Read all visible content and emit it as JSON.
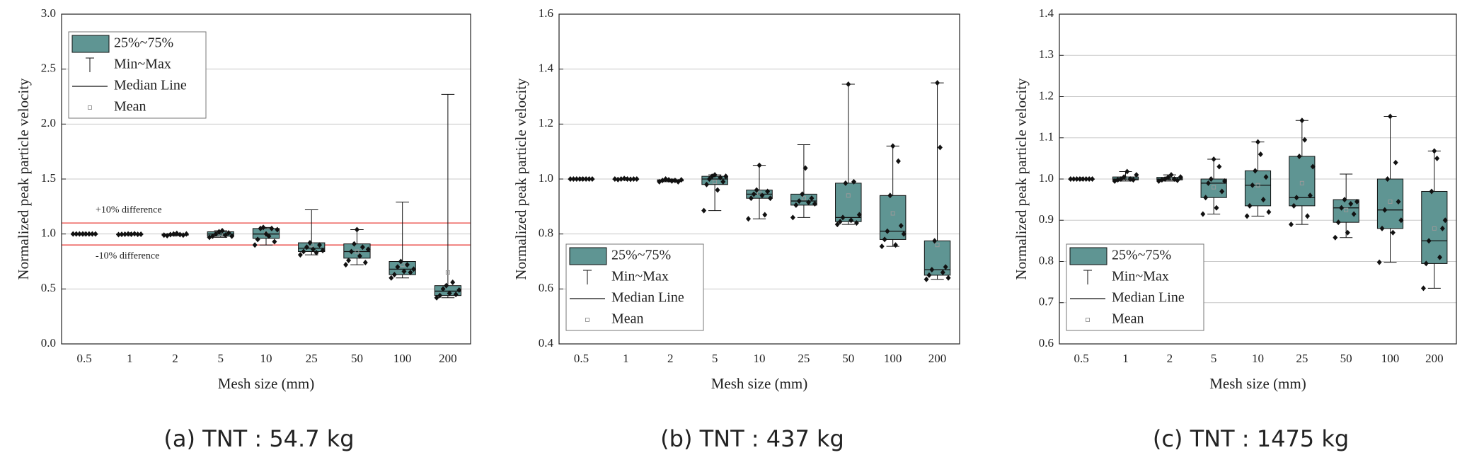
{
  "chart_data": [
    {
      "type": "box",
      "caption": "(a) TNT : 54.7 kg",
      "xlabel": "Mesh size (mm)",
      "ylabel": "Normalized peak particle velocity",
      "categories": [
        "0.5",
        "1",
        "2",
        "5",
        "10",
        "25",
        "50",
        "100",
        "200"
      ],
      "ylim": [
        0,
        3
      ],
      "yticks": [
        {
          "value": 0,
          "label": "0.0"
        },
        0.5,
        {
          "value": 1,
          "label": "1.0"
        },
        1.5,
        {
          "value": 2,
          "label": "2.0"
        },
        2.5,
        {
          "value": 3,
          "label": "3.0"
        }
      ],
      "color": "#5f9593",
      "grid": true,
      "legend": {
        "corner": "upper left",
        "labels": [
          "25%~75%",
          "Min~Max",
          "Median Line",
          "Mean"
        ]
      },
      "reference_lines": [
        {
          "value": 1.1,
          "label": "+10% difference",
          "color": "#e8413c"
        },
        {
          "value": 0.9,
          "label": "-10% difference",
          "color": "#e8413c"
        }
      ],
      "boxes": [
        {
          "min": 1,
          "q1": 1,
          "median": 1,
          "q3": 1,
          "max": 1,
          "mean": 1,
          "points": [
            1,
            1,
            1,
            1,
            1,
            1,
            1,
            1
          ]
        },
        {
          "min": 0.995,
          "q1": 0.997,
          "median": 0.998,
          "q3": 1,
          "max": 1.002,
          "mean": 0.998,
          "points": [
            0.995,
            0.997,
            0.998,
            1,
            0.998,
            1.002,
            0.997,
            0.998
          ]
        },
        {
          "min": 0.985,
          "q1": 0.99,
          "median": 0.995,
          "q3": 1,
          "max": 1.005,
          "mean": 0.995,
          "points": [
            0.99,
            0.985,
            0.995,
            1,
            1.005,
            0.995,
            0.99,
            1
          ]
        },
        {
          "min": 0.97,
          "q1": 0.98,
          "median": 1,
          "q3": 1.02,
          "max": 1.03,
          "mean": 1,
          "points": [
            0.97,
            0.98,
            1,
            1.02,
            1.03,
            0.99,
            1.01,
            0.98
          ]
        },
        {
          "min": 0.9,
          "q1": 0.96,
          "median": 1,
          "q3": 1.05,
          "max": 1.06,
          "mean": 1,
          "points": [
            0.9,
            0.95,
            1.05,
            1.06,
            1,
            0.98,
            1.05,
            0.93,
            1.04
          ]
        },
        {
          "min": 0.81,
          "q1": 0.84,
          "median": 0.87,
          "q3": 0.92,
          "max": 1.22,
          "mean": 0.9,
          "points": [
            0.81,
            0.84,
            0.88,
            0.92,
            0.86,
            0.83,
            0.9,
            0.85
          ]
        },
        {
          "min": 0.72,
          "q1": 0.78,
          "median": 0.84,
          "q3": 0.91,
          "max": 1.04,
          "mean": 0.84,
          "points": [
            0.72,
            0.76,
            0.84,
            0.91,
            1.04,
            0.8,
            0.88,
            0.74,
            0.86
          ]
        },
        {
          "min": 0.6,
          "q1": 0.63,
          "median": 0.68,
          "q3": 0.75,
          "max": 1.29,
          "mean": 0.72,
          "points": [
            0.6,
            0.63,
            0.7,
            0.75,
            0.66,
            0.72,
            0.65,
            0.68
          ]
        },
        {
          "min": 0.42,
          "q1": 0.44,
          "median": 0.48,
          "q3": 0.53,
          "max": 2.27,
          "mean": 0.65,
          "points": [
            0.42,
            0.44,
            0.5,
            0.53,
            0.46,
            0.56,
            0.45,
            0.49
          ]
        }
      ]
    },
    {
      "type": "box",
      "caption": "(b) TNT : 437 kg",
      "xlabel": "Mesh size (mm)",
      "ylabel": "Normalized peak particle velocity",
      "categories": [
        "0.5",
        "1",
        "2",
        "5",
        "10",
        "25",
        "50",
        "100",
        "200"
      ],
      "ylim": [
        0.4,
        1.6
      ],
      "yticks": [
        0.4,
        0.6,
        0.8,
        {
          "value": 1,
          "label": "1.0"
        },
        1.2,
        1.4,
        1.6
      ],
      "color": "#5f9593",
      "grid": true,
      "legend": {
        "corner": "lower left",
        "labels": [
          "25%~75%",
          "Min~Max",
          "Median Line",
          "Mean"
        ]
      },
      "boxes": [
        {
          "min": 1,
          "q1": 1,
          "median": 1,
          "q3": 1,
          "max": 1,
          "mean": 1,
          "points": [
            1,
            1,
            1,
            1,
            1,
            1,
            1,
            1
          ]
        },
        {
          "min": 0.998,
          "q1": 0.999,
          "median": 1,
          "q3": 1,
          "max": 1.002,
          "mean": 1,
          "points": [
            1,
            0.998,
            1,
            1.002,
            1,
            0.999,
            1,
            1
          ]
        },
        {
          "min": 0.99,
          "q1": 0.993,
          "median": 0.995,
          "q3": 0.997,
          "max": 1,
          "mean": 0.995,
          "points": [
            0.99,
            0.995,
            1,
            0.997,
            0.993,
            0.995,
            0.99,
            0.997
          ]
        },
        {
          "min": 0.885,
          "q1": 0.98,
          "median": 1,
          "q3": 1.01,
          "max": 1.015,
          "mean": 0.99,
          "points": [
            0.885,
            0.98,
            1,
            1.01,
            1.015,
            0.96,
            1.005,
            0.99,
            1.01
          ]
        },
        {
          "min": 0.855,
          "q1": 0.93,
          "median": 0.945,
          "q3": 0.96,
          "max": 1.05,
          "mean": 0.95,
          "points": [
            0.855,
            0.93,
            0.945,
            0.96,
            1.05,
            0.94,
            0.87,
            0.955,
            0.93
          ]
        },
        {
          "min": 0.86,
          "q1": 0.905,
          "median": 0.92,
          "q3": 0.945,
          "max": 1.125,
          "mean": 0.93,
          "points": [
            0.86,
            0.905,
            0.92,
            0.945,
            1.04,
            0.915,
            0.93,
            0.91
          ]
        },
        {
          "min": 0.835,
          "q1": 0.845,
          "median": 0.86,
          "q3": 0.985,
          "max": 1.345,
          "mean": 0.94,
          "points": [
            0.835,
            0.845,
            0.86,
            0.985,
            1.345,
            0.85,
            0.99,
            0.84,
            0.87
          ]
        },
        {
          "min": 0.755,
          "q1": 0.78,
          "median": 0.81,
          "q3": 0.94,
          "max": 1.12,
          "mean": 0.875,
          "points": [
            0.755,
            0.78,
            0.81,
            0.94,
            1.12,
            0.76,
            1.065,
            0.83,
            0.8
          ]
        },
        {
          "min": 0.635,
          "q1": 0.65,
          "median": 0.67,
          "q3": 0.775,
          "max": 1.35,
          "mean": 0.76,
          "points": [
            0.635,
            0.65,
            0.67,
            0.775,
            1.35,
            1.115,
            0.66,
            0.68,
            0.64
          ]
        }
      ]
    },
    {
      "type": "box",
      "caption": "(c) TNT : 1475 kg",
      "xlabel": "Mesh size (mm)",
      "ylabel": "Normalized peak particle velocity",
      "categories": [
        "0.5",
        "1",
        "2",
        "5",
        "10",
        "25",
        "50",
        "100",
        "200"
      ],
      "ylim": [
        0.6,
        1.4
      ],
      "yticks": [
        0.6,
        0.7,
        0.8,
        0.9,
        {
          "value": 1,
          "label": "1.0"
        },
        1.1,
        1.2,
        1.3,
        1.4
      ],
      "color": "#5f9593",
      "grid": true,
      "legend": {
        "corner": "lower left",
        "labels": [
          "25%~75%",
          "Min~Max",
          "Median Line",
          "Mean"
        ]
      },
      "boxes": [
        {
          "min": 1,
          "q1": 1,
          "median": 1,
          "q3": 1,
          "max": 1,
          "mean": 1,
          "points": [
            1,
            1,
            1,
            1,
            1,
            1,
            1,
            1
          ]
        },
        {
          "min": 0.995,
          "q1": 0.998,
          "median": 1,
          "q3": 1.005,
          "max": 1.018,
          "mean": 1.002,
          "points": [
            0.995,
            0.998,
            1,
            1.005,
            1.018,
            1,
            0.998,
            1.01
          ]
        },
        {
          "min": 0.995,
          "q1": 0.998,
          "median": 1,
          "q3": 1.004,
          "max": 1.01,
          "mean": 1.001,
          "points": [
            0.995,
            0.998,
            1,
            1.004,
            1.01,
            1,
            0.997,
            1.005
          ]
        },
        {
          "min": 0.915,
          "q1": 0.955,
          "median": 0.99,
          "q3": 1,
          "max": 1.048,
          "mean": 0.98,
          "points": [
            0.915,
            0.955,
            0.99,
            1,
            1.048,
            0.93,
            1.03,
            0.97,
            0.995
          ]
        },
        {
          "min": 0.91,
          "q1": 0.935,
          "median": 0.985,
          "q3": 1.02,
          "max": 1.09,
          "mean": 0.985,
          "points": [
            0.91,
            0.935,
            0.985,
            1.02,
            1.09,
            1.06,
            0.95,
            1.005,
            0.92
          ]
        },
        {
          "min": 0.89,
          "q1": 0.935,
          "median": 0.955,
          "q3": 1.055,
          "max": 1.142,
          "mean": 0.99,
          "points": [
            0.89,
            0.935,
            0.955,
            1.055,
            1.142,
            1.095,
            0.91,
            0.96,
            1.03
          ]
        },
        {
          "min": 0.858,
          "q1": 0.895,
          "median": 0.93,
          "q3": 0.95,
          "max": 1.012,
          "mean": 0.925,
          "points": [
            0.858,
            0.895,
            0.93,
            0.95,
            0.87,
            0.94,
            0.915,
            0.945
          ]
        },
        {
          "min": 0.798,
          "q1": 0.88,
          "median": 0.925,
          "q3": 1,
          "max": 1.152,
          "mean": 0.945,
          "points": [
            0.798,
            0.88,
            0.925,
            1,
            1.152,
            0.87,
            1.04,
            0.945,
            0.9
          ]
        },
        {
          "min": 0.735,
          "q1": 0.795,
          "median": 0.85,
          "q3": 0.97,
          "max": 1.068,
          "mean": 0.88,
          "points": [
            0.735,
            0.795,
            0.85,
            0.97,
            1.068,
            1.05,
            0.81,
            0.88,
            0.9
          ]
        }
      ]
    }
  ]
}
